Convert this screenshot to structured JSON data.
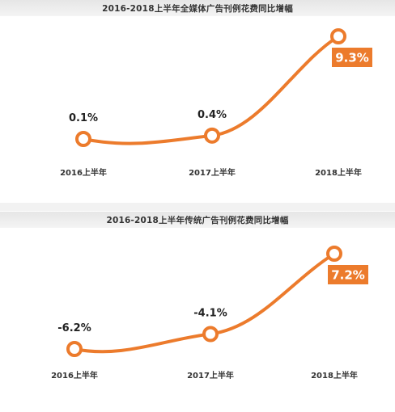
{
  "colors": {
    "accent": "#ec7b2c",
    "text": "#222222"
  },
  "chart_data": [
    {
      "type": "line",
      "title": "2016-2018上半年全媒体广告刊例花费同比增幅",
      "categories": [
        "2016上半年",
        "2017上半年",
        "2018上半年"
      ],
      "values": [
        0.1,
        0.4,
        9.3
      ],
      "value_labels": [
        "0.1%",
        "0.4%",
        "9.3%"
      ],
      "highlight_index": 2,
      "ylim": [
        -1,
        10
      ],
      "grid": false
    },
    {
      "type": "line",
      "title": "2016-2018上半年传统广告刊例花费同比增幅",
      "categories": [
        "2016上半年",
        "2017上半年",
        "2018上半年"
      ],
      "values": [
        -6.2,
        -4.1,
        7.2
      ],
      "value_labels": [
        "-6.2%",
        "-4.1%",
        "7.2%"
      ],
      "highlight_index": 2,
      "ylim": [
        -7.5,
        8.5
      ],
      "grid": false
    }
  ]
}
